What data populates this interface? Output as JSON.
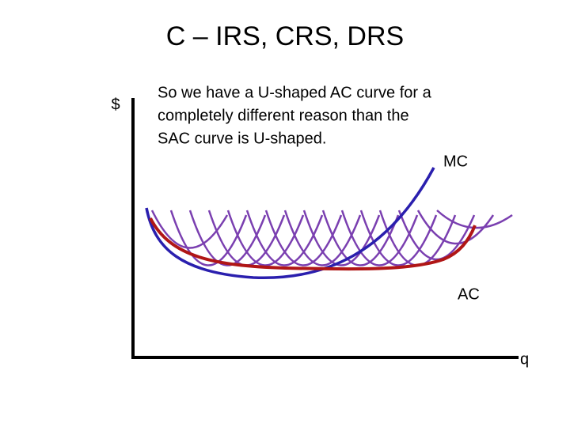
{
  "title": "C – IRS, CRS, DRS",
  "y_axis_label": "$",
  "x_axis_label": "q",
  "text_lines": [
    "So we have a U-shaped AC curve for a",
    "completely different reason than the",
    "SAC curve is U-shaped."
  ],
  "curve_labels": {
    "mc": "MC",
    "ac": "AC"
  }
}
